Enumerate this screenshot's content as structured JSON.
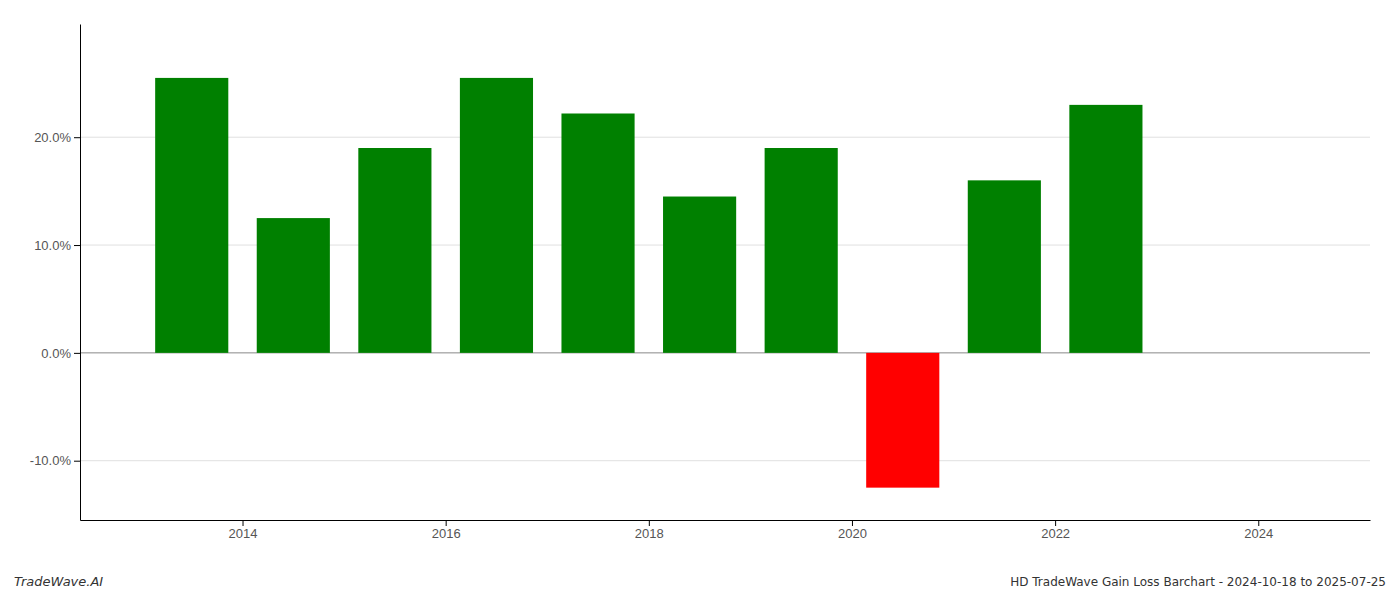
{
  "chart_data": {
    "type": "bar",
    "title": "HD TradeWave Gain Loss Barchart - 2024-10-18 to 2025-07-25",
    "annotations": [
      "TradeWave.AI"
    ],
    "x": [
      2013.5,
      2014.5,
      2015.5,
      2016.5,
      2017.5,
      2018.5,
      2019.5,
      2020.5,
      2021.5,
      2022.5
    ],
    "values": [
      0.255,
      0.125,
      0.19,
      0.255,
      0.222,
      0.145,
      0.19,
      -0.125,
      0.16,
      0.23
    ],
    "colors": [
      "#008000",
      "#008000",
      "#008000",
      "#008000",
      "#008000",
      "#008000",
      "#008000",
      "#ff0000",
      "#008000",
      "#008000"
    ],
    "xlim": [
      2012.4,
      2025.1
    ],
    "xticks": [
      2014,
      2016,
      2018,
      2020,
      2022,
      2024
    ],
    "ylim": [
      -0.155,
      0.305
    ],
    "yticks": [
      {
        "value": -0.1,
        "label": "-10.0%"
      },
      {
        "value": 0.0,
        "label": "0.0%"
      },
      {
        "value": 0.1,
        "label": "10.0%"
      },
      {
        "value": 0.2,
        "label": "20.0%"
      }
    ],
    "grid": true
  }
}
